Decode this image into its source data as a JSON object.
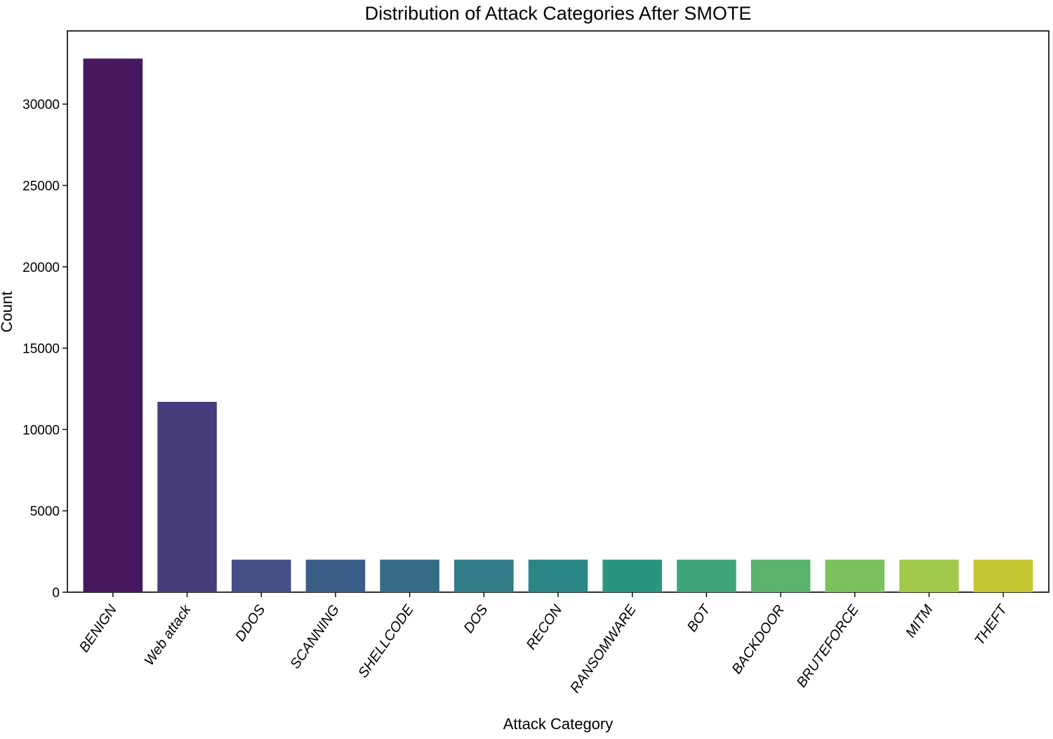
{
  "chart_data": {
    "type": "bar",
    "title": "Distribution of Attack Categories After SMOTE",
    "xlabel": "Attack Category",
    "ylabel": "Count",
    "categories": [
      "BENIGN",
      "Web attack",
      "DDOS",
      "SCANNING",
      "SHELLCODE",
      "DOS",
      "RECON",
      "RANSOMWARE",
      "BOT",
      "BACKDOOR",
      "BRUTEFORCE",
      "MITM",
      "THEFT"
    ],
    "values": [
      32800,
      11700,
      2000,
      2000,
      2000,
      2000,
      2000,
      2000,
      2000,
      2000,
      2000,
      2000,
      2000
    ],
    "ylim": [
      0,
      34500
    ],
    "yticks": [
      0,
      5000,
      10000,
      15000,
      20000,
      25000,
      30000
    ],
    "grid": false,
    "colors": [
      "#45185f",
      "#483c7c",
      "#454f88",
      "#3c5c88",
      "#356b87",
      "#2f7b88",
      "#2a8786",
      "#2a957f",
      "#3ea578",
      "#5ab36d",
      "#7bc15d",
      "#a0c94b",
      "#c4c634"
    ]
  }
}
